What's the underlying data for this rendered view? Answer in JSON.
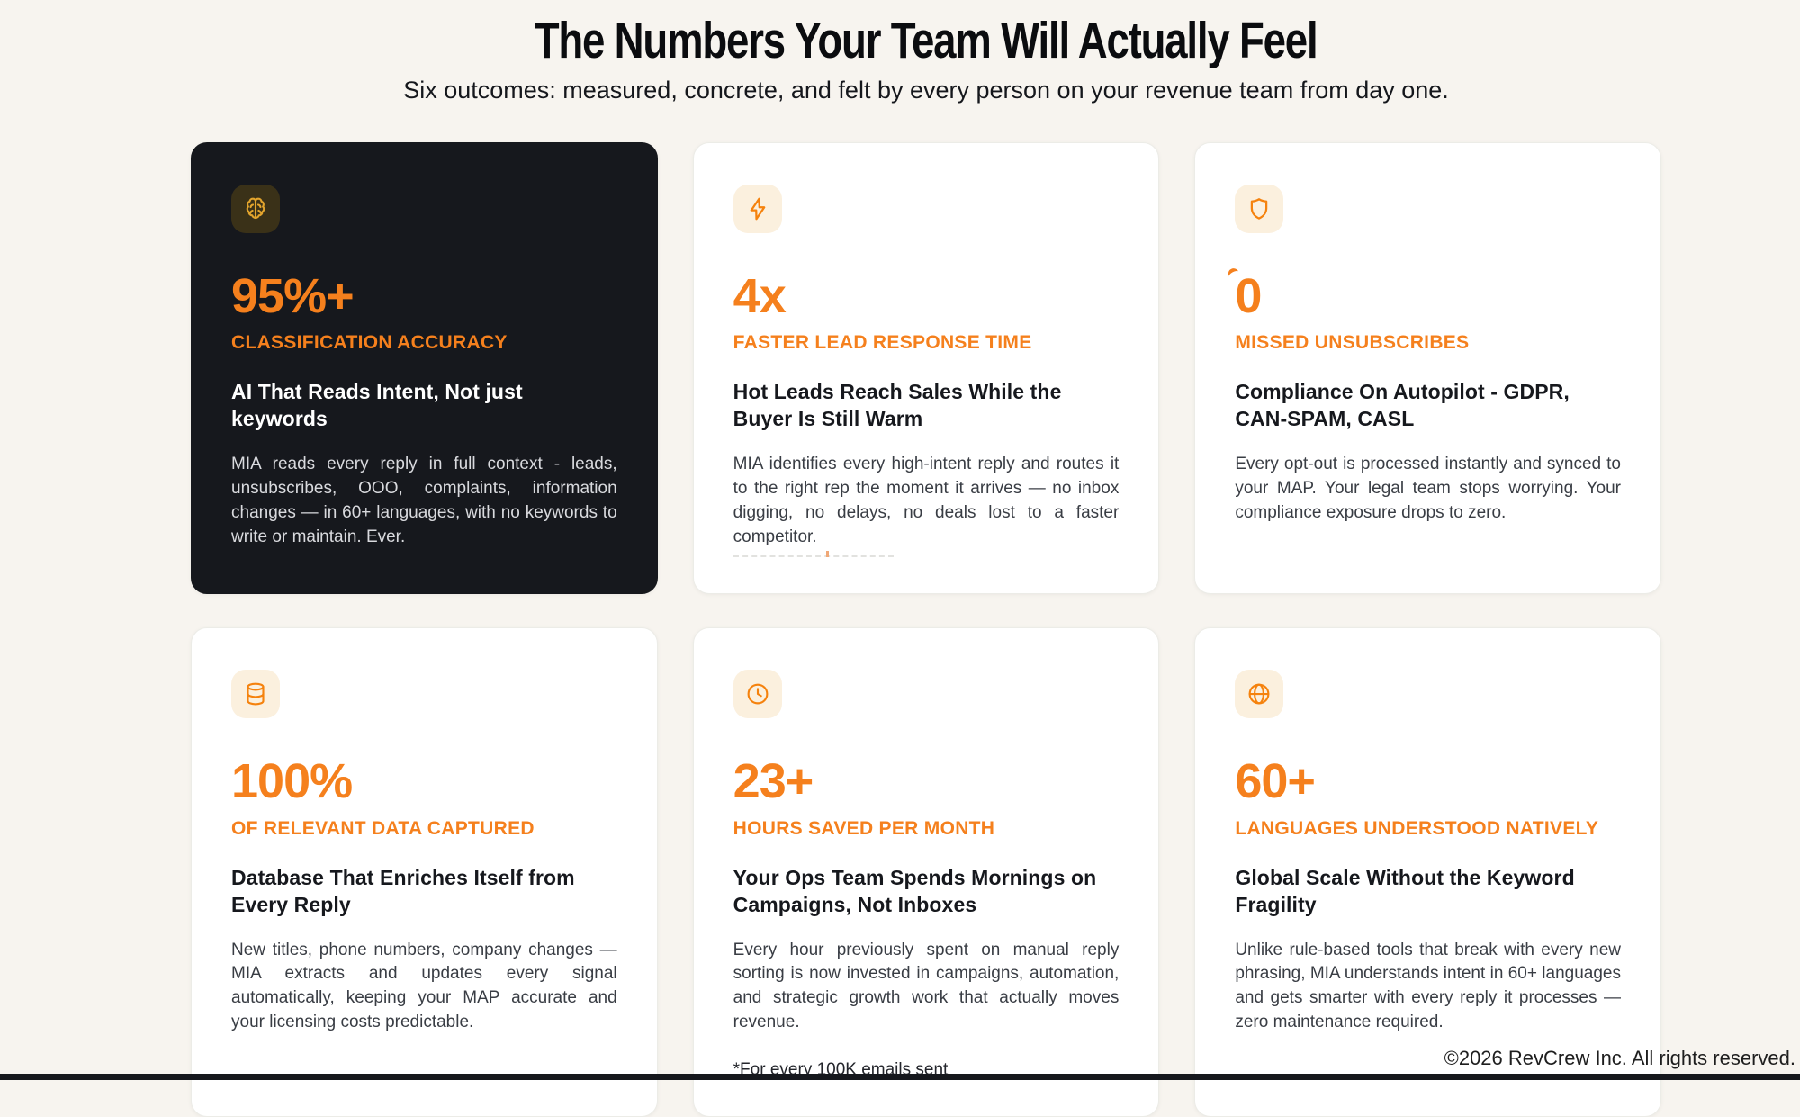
{
  "header": {
    "title": "The Numbers Your Team Will Actually Feel",
    "subtitle": "Six outcomes: measured, concrete, and felt by every person on your revenue team from day one."
  },
  "cards": [
    {
      "id": "classification-accuracy",
      "theme": "dark",
      "icon": "brain-icon",
      "number": "95%+",
      "label": "CLASSIFICATION ACCURACY",
      "heading": "AI That Reads Intent, Not just keywords",
      "body": "MIA reads every reply in full context - leads, unsubscribes, OOO, complaints, information changes — in 60+ languages, with no keywords to write or maintain. Ever."
    },
    {
      "id": "faster-lead-response",
      "theme": "light",
      "icon": "lightning-bolt-icon",
      "number": "4x",
      "label": "FASTER LEAD RESPONSE TIME",
      "heading": "Hot Leads Reach Sales While the Buyer Is Still Warm",
      "body": "MIA identifies every high-intent reply and routes it to the right rep the moment it arrives — no inbox digging, no delays, no deals lost to a faster competitor.",
      "artifact": true
    },
    {
      "id": "missed-unsubscribes",
      "theme": "light",
      "icon": "shield-icon",
      "number": "0",
      "label": "MISSED UNSUBSCRIBES",
      "heading": "Compliance On Autopilot - GDPR, CAN-SPAM, CASL",
      "body": "Every opt-out is processed instantly and synced to your MAP. Your legal team stops worrying. Your compliance exposure drops to zero.",
      "decoration": "spur"
    },
    {
      "id": "data-captured",
      "theme": "light",
      "icon": "database-icon",
      "number": "100%",
      "label": "OF RELEVANT DATA CAPTURED",
      "heading": "Database That Enriches Itself from Every Reply",
      "body": "New titles, phone numbers, company changes — MIA extracts and updates every signal automatically, keeping your MAP accurate and your licensing costs predictable."
    },
    {
      "id": "hours-saved",
      "theme": "light",
      "icon": "clock-icon",
      "number": "23+",
      "label": "HOURS SAVED PER MONTH",
      "heading": "Your Ops Team Spends Mornings on Campaigns, Not Inboxes",
      "body": "Every hour previously spent on manual reply sorting is now invested in campaigns, automation, and strategic growth work that actually moves revenue.",
      "footnote": "*For every 100K emails sent"
    },
    {
      "id": "languages-understood",
      "theme": "light",
      "icon": "globe-icon",
      "number": "60+",
      "label": "LANGUAGES UNDERSTOOD NATIVELY",
      "heading": "Global Scale Without the Keyword Fragility",
      "body": "Unlike rule-based tools that break with every new phrasing, MIA understands intent in 60+ languages and gets smarter with every reply it processes — zero maintenance required."
    }
  ],
  "footer": {
    "copyright": "©2026 RevCrew Inc. All rights reserved."
  },
  "colors": {
    "accent_orange": "#F5801D",
    "page_background": "#F7F4EF",
    "dark_card_background": "#16181D",
    "light_tile_background": "#FBF0DE",
    "dark_tile_background": "#3A3118",
    "dark_tile_icon": "#E2A42D",
    "light_tile_icon": "#F5820D"
  }
}
